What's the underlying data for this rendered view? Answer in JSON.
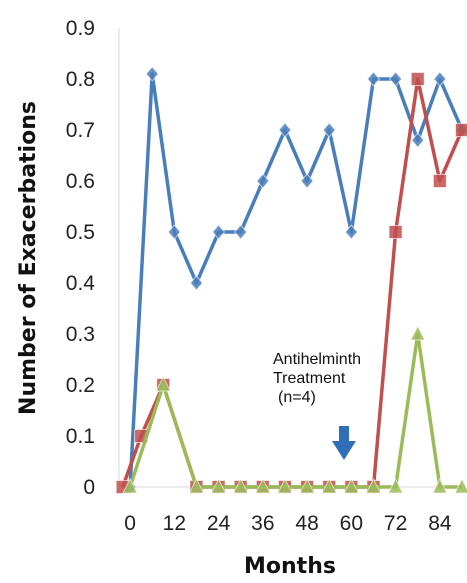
{
  "chart_data": {
    "type": "line",
    "xlabel": "Months",
    "ylabel": "Number of Exacerbations",
    "xlim": [
      -3,
      90
    ],
    "ylim": [
      0,
      0.9
    ],
    "x_ticks": [
      0,
      12,
      24,
      36,
      48,
      60,
      72,
      84
    ],
    "y_ticks": [
      0,
      0.1,
      0.2,
      0.3,
      0.4,
      0.5,
      0.6,
      0.7,
      0.8,
      0.9
    ],
    "y_tick_labels": [
      "0",
      "0.1",
      "0.2",
      "0.3",
      "0.4",
      "0.5",
      "0.6",
      "0.7",
      "0.8",
      "0.9"
    ],
    "grid": false,
    "series": [
      {
        "marker": "diamond",
        "color": "#4a7ebb",
        "x": [
          0,
          6,
          12,
          18,
          24,
          30,
          36,
          42,
          48,
          54,
          60,
          66,
          72,
          78,
          84,
          90
        ],
        "values": [
          0,
          0.81,
          0.5,
          0.4,
          0.5,
          0.5,
          0.6,
          0.7,
          0.6,
          0.7,
          0.5,
          0.8,
          0.8,
          0.68,
          0.8,
          0.7
        ]
      },
      {
        "marker": "square",
        "color": "#c0504d",
        "x": [
          -2,
          3,
          9,
          18,
          24,
          30,
          36,
          42,
          48,
          54,
          60,
          66,
          72,
          78,
          84,
          90
        ],
        "values": [
          0,
          0.1,
          0.2,
          0,
          0,
          0,
          0,
          0,
          0,
          0,
          0,
          0,
          0.5,
          0.8,
          0.6,
          0.7
        ]
      },
      {
        "marker": "triangle",
        "color": "#9bbb59",
        "x": [
          0,
          9,
          18,
          24,
          30,
          36,
          42,
          48,
          54,
          60,
          66,
          72,
          78,
          84,
          90
        ],
        "values": [
          0,
          0.2,
          0,
          0,
          0,
          0,
          0,
          0,
          0,
          0,
          0,
          0,
          0.3,
          0,
          0
        ]
      }
    ],
    "annotation": {
      "lines": [
        "Antihelminth",
        "Treatment",
        "(n=4)"
      ],
      "arrow_at_x": 58,
      "arrow_direction": "down",
      "arrow_color": "#2e6fb8"
    }
  }
}
